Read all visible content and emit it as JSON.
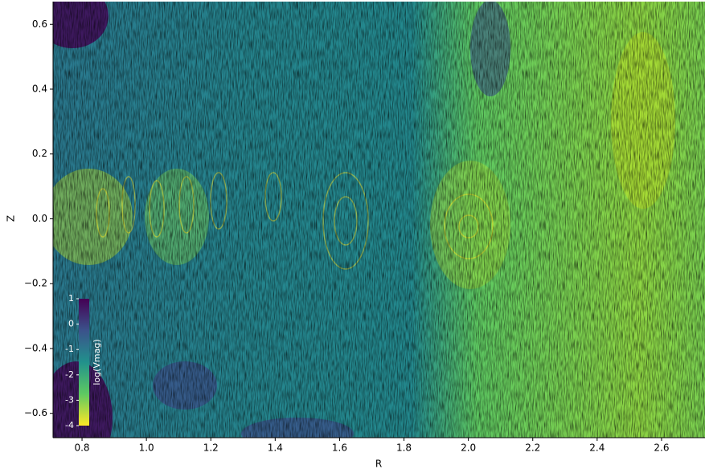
{
  "chart_data": {
    "type": "image",
    "xlabel": "R",
    "ylabel": "Z",
    "xlim": [
      0.71,
      2.735
    ],
    "ylim": [
      -0.675,
      0.67
    ],
    "xticks": [
      0.8,
      {
        "value": 1.0,
        "label": "1.0"
      },
      1.2,
      1.4,
      1.6,
      1.8,
      {
        "value": 2.0,
        "label": "2.0"
      },
      2.2,
      2.4,
      2.6
    ],
    "yticks": [
      {
        "value": -0.6,
        "label": "−0.6"
      },
      {
        "value": -0.4,
        "label": "−0.4"
      },
      {
        "value": -0.2,
        "label": "−0.2"
      },
      {
        "value": 0,
        "label": "0.0"
      },
      0.2,
      0.4,
      0.6
    ],
    "colorbar": {
      "label": "log(Vmag)",
      "lim": [
        -4,
        1
      ],
      "ticks": [
        1,
        0,
        -1,
        -2,
        -3,
        -4
      ],
      "colors": [
        "#fde725",
        "#5ec962",
        "#21918c",
        "#3b528b",
        "#440154"
      ]
    }
  }
}
